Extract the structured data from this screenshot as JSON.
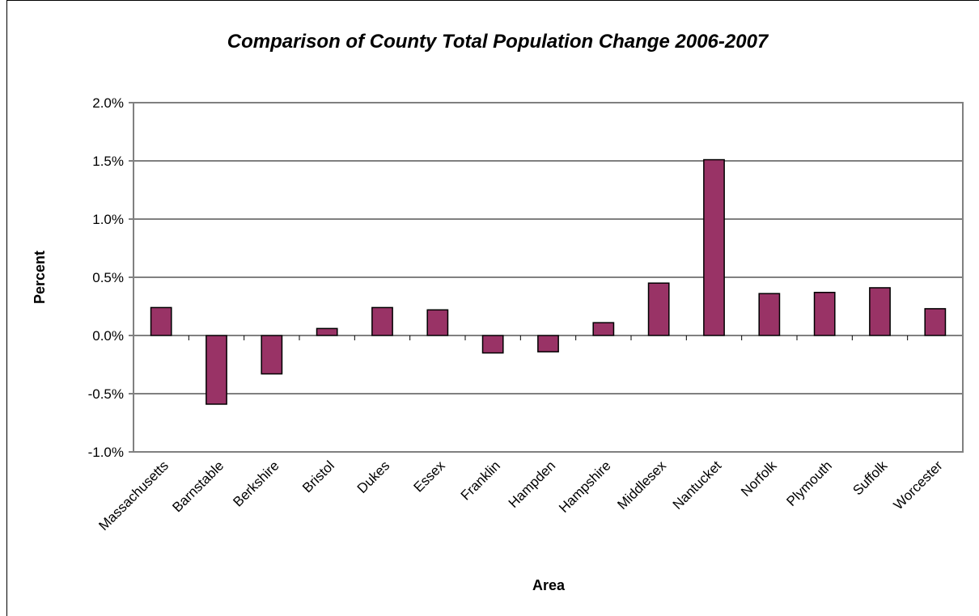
{
  "chart_data": {
    "type": "bar",
    "title": "Comparison of County Total Population Change 2006-2007",
    "xlabel": "Area",
    "ylabel": "Percent",
    "categories": [
      "Massachusetts",
      "Barnstable",
      "Berkshire",
      "Bristol",
      "Dukes",
      "Essex",
      "Franklin",
      "Hampden",
      "Hampshire",
      "Middlesex",
      "Nantucket",
      "Norfolk",
      "Plymouth",
      "Suffolk",
      "Worcester"
    ],
    "values": [
      0.24,
      -0.59,
      -0.33,
      0.06,
      0.24,
      0.22,
      -0.15,
      -0.14,
      0.11,
      0.45,
      1.51,
      0.36,
      0.37,
      0.41,
      0.23
    ],
    "unit": "%",
    "ylim": [
      -1.0,
      2.0
    ],
    "yticks": [
      "2.0%",
      "1.5%",
      "1.0%",
      "0.5%",
      "0.0%",
      "-0.5%",
      "-1.0%"
    ],
    "ytick_values": [
      2.0,
      1.5,
      1.0,
      0.5,
      0.0,
      -0.5,
      -1.0
    ],
    "grid": true,
    "legend": "none",
    "bar_color": "#993366"
  }
}
